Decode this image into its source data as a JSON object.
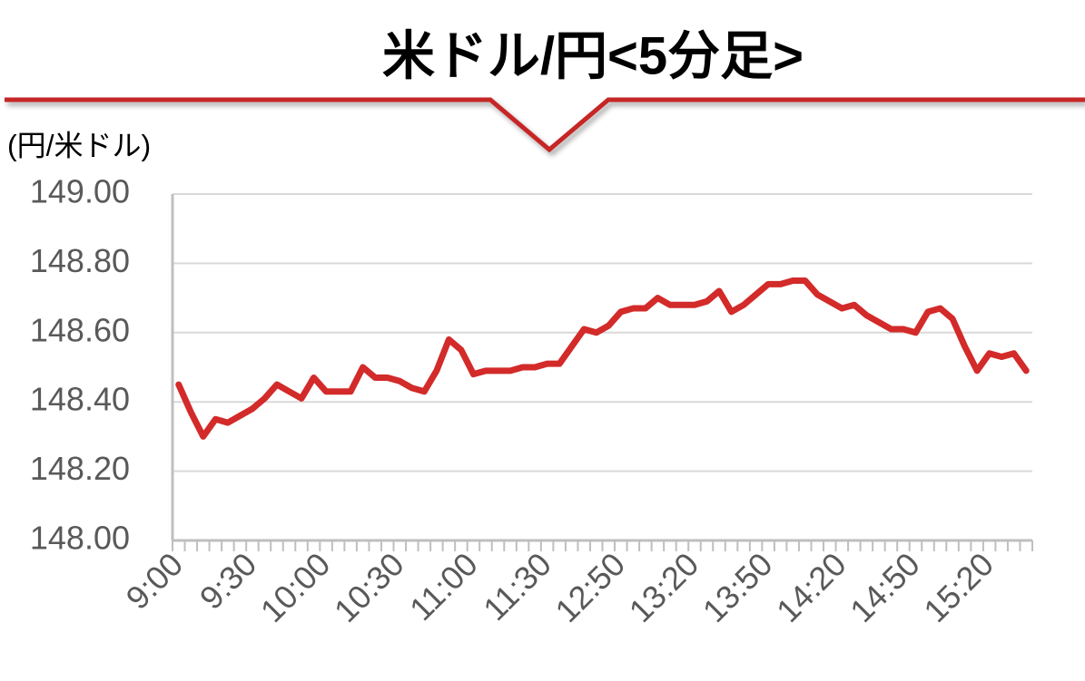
{
  "chart_data": {
    "type": "line",
    "title": "米ドル/円<5分足>",
    "y_label": "(円/米ドル)",
    "categories": [
      "9:00",
      null,
      null,
      null,
      null,
      null,
      "9:30",
      null,
      null,
      null,
      null,
      null,
      "10:00",
      null,
      null,
      null,
      null,
      null,
      "10:30",
      null,
      null,
      null,
      null,
      null,
      "11:00",
      null,
      null,
      null,
      null,
      null,
      "11:30",
      null,
      null,
      null,
      null,
      null,
      "12:50",
      null,
      null,
      null,
      null,
      null,
      "13:20",
      null,
      null,
      null,
      null,
      null,
      "13:50",
      null,
      null,
      null,
      null,
      null,
      "14:20",
      null,
      null,
      null,
      null,
      null,
      "14:50",
      null,
      null,
      null,
      null,
      null,
      "15:20",
      null,
      null,
      null
    ],
    "series": [
      {
        "name": "米ドル/円",
        "color": "#d32a2a",
        "values": [
          148.45,
          148.37,
          148.3,
          148.35,
          148.34,
          148.36,
          148.38,
          148.41,
          148.45,
          148.43,
          148.41,
          148.47,
          148.43,
          148.43,
          148.43,
          148.5,
          148.47,
          148.47,
          148.46,
          148.44,
          148.43,
          148.49,
          148.58,
          148.55,
          148.48,
          148.49,
          148.49,
          148.49,
          148.5,
          148.5,
          148.51,
          148.51,
          148.56,
          148.61,
          148.6,
          148.62,
          148.66,
          148.67,
          148.67,
          148.7,
          148.68,
          148.68,
          148.68,
          148.69,
          148.72,
          148.66,
          148.68,
          148.71,
          148.74,
          148.74,
          148.75,
          148.75,
          148.71,
          148.69,
          148.67,
          148.68,
          148.65,
          148.63,
          148.61,
          148.61,
          148.6,
          148.66,
          148.67,
          148.64,
          148.56,
          148.49,
          148.54,
          148.53,
          148.54,
          148.49
        ]
      }
    ],
    "ylim": [
      148,
      149
    ],
    "yticks": [
      {
        "value": 148,
        "label": "148.00"
      },
      {
        "value": 148.2,
        "label": "148.20"
      },
      {
        "value": 148.4,
        "label": "148.40"
      },
      {
        "value": 148.6,
        "label": "148.60"
      },
      {
        "value": 148.8,
        "label": "148.80"
      },
      {
        "value": 149,
        "label": "149.00"
      }
    ],
    "grid": true
  }
}
